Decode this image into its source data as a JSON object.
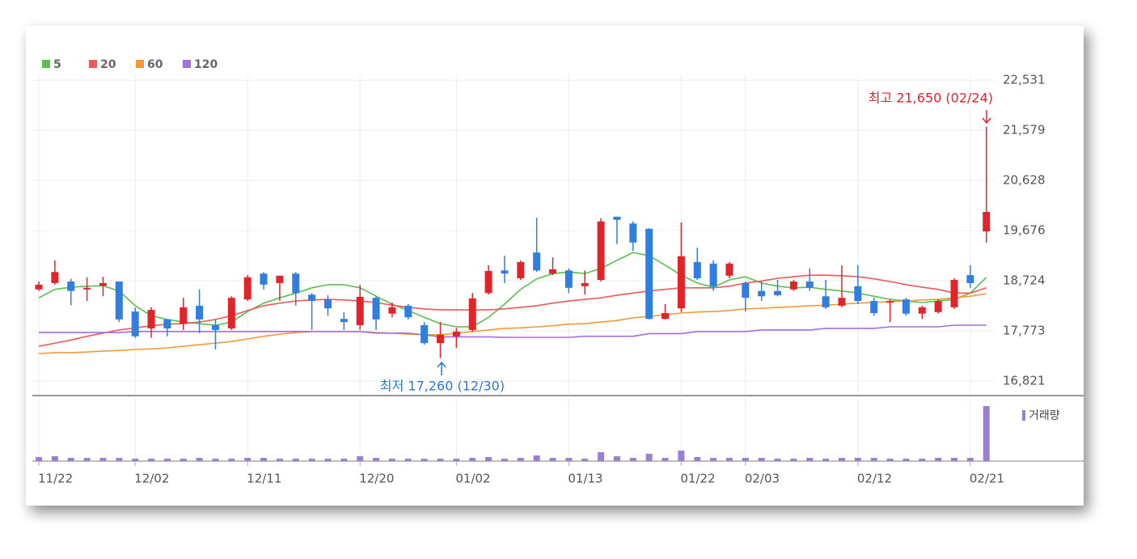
{
  "chart_data": [
    {
      "type": "candlestick",
      "up_color": "#e0252a",
      "down_color": "#2f7ee0",
      "ylim": [
        16560,
        22640
      ],
      "yticks": [
        {
          "value": 22531,
          "label": "22,531"
        },
        {
          "value": 21579,
          "label": "21,579"
        },
        {
          "value": 20628,
          "label": "20,628"
        },
        {
          "value": 19676,
          "label": "19,676"
        },
        {
          "value": 18724,
          "label": "18,724"
        },
        {
          "value": 17773,
          "label": "17,773"
        },
        {
          "value": 16821,
          "label": "16,821"
        }
      ],
      "grid": true,
      "annotations": [
        "최고 21,650 (02/24)",
        "최저 17,260 (12/30)"
      ],
      "open": [
        18560,
        18680,
        18710,
        18560,
        18630,
        18710,
        18140,
        17820,
        17990,
        17910,
        18250,
        17880,
        17820,
        18370,
        18860,
        18680,
        18860,
        18460,
        18370,
        18000,
        17880,
        18400,
        18100,
        18250,
        17880,
        17540,
        17670,
        17790,
        18490,
        18920,
        18770,
        19260,
        18860,
        18920,
        18620,
        18740,
        19940,
        19810,
        19710,
        18000,
        18200,
        19080,
        19050,
        18820,
        18680,
        18530,
        18530,
        18560,
        18710,
        18430,
        18250,
        18620,
        18340,
        18310,
        18370,
        18100,
        18130,
        18220,
        18830,
        19660
      ],
      "high": [
        18710,
        19110,
        18760,
        18790,
        18800,
        18710,
        18220,
        18220,
        17990,
        18400,
        18560,
        17990,
        18430,
        18830,
        18890,
        18820,
        18890,
        18490,
        18450,
        18130,
        18650,
        18430,
        18310,
        18280,
        17940,
        17940,
        17830,
        18490,
        19020,
        19200,
        19110,
        19920,
        19170,
        18960,
        18920,
        19910,
        19940,
        19850,
        19720,
        18280,
        19830,
        19350,
        19110,
        19080,
        18710,
        18710,
        18740,
        18740,
        18960,
        18740,
        19020,
        19020,
        18400,
        18370,
        18400,
        18250,
        18370,
        18770,
        19020,
        21650
      ],
      "low": [
        18530,
        18650,
        18260,
        18340,
        18430,
        17940,
        17640,
        17640,
        17670,
        17790,
        17730,
        17420,
        17790,
        18340,
        18560,
        18340,
        18250,
        17790,
        18060,
        17790,
        17790,
        17790,
        18030,
        17990,
        17510,
        17260,
        17450,
        17760,
        18460,
        18680,
        18740,
        18890,
        18830,
        18490,
        18460,
        18710,
        19420,
        19290,
        17990,
        17990,
        18130,
        18740,
        18530,
        18770,
        18140,
        18340,
        18430,
        18530,
        18530,
        18190,
        18220,
        18280,
        18060,
        17940,
        18060,
        18000,
        18100,
        18190,
        18590,
        19450
      ],
      "close": [
        18650,
        18890,
        18530,
        18590,
        18680,
        17990,
        17670,
        18170,
        17820,
        18220,
        17990,
        17790,
        18400,
        18790,
        18650,
        18820,
        18490,
        18340,
        18200,
        17940,
        18420,
        17990,
        18220,
        18030,
        17540,
        17700,
        17760,
        18390,
        18910,
        18860,
        19080,
        18920,
        18940,
        18590,
        18680,
        19850,
        19880,
        19450,
        18000,
        18110,
        19190,
        18770,
        18620,
        19050,
        18400,
        18430,
        18450,
        18710,
        18590,
        18220,
        18400,
        18340,
        18110,
        18340,
        18100,
        18220,
        18340,
        18740,
        18680,
        20030
      ],
      "series": [
        {
          "name": "5",
          "color": "#5bbf4f",
          "values": [
            18400,
            18560,
            18600,
            18620,
            18630,
            18530,
            18250,
            18060,
            17990,
            17940,
            17910,
            17880,
            17940,
            18140,
            18300,
            18400,
            18490,
            18590,
            18650,
            18650,
            18590,
            18430,
            18280,
            18160,
            18030,
            17910,
            17850,
            17850,
            18030,
            18280,
            18560,
            18760,
            18860,
            18890,
            18860,
            18960,
            19110,
            19260,
            19200,
            19020,
            18830,
            18680,
            18600,
            18740,
            18800,
            18680,
            18620,
            18590,
            18600,
            18560,
            18530,
            18490,
            18430,
            18370,
            18340,
            18310,
            18340,
            18370,
            18490,
            18790
          ]
        },
        {
          "name": "20",
          "color": "#ec5a5a",
          "values": [
            17480,
            17540,
            17600,
            17670,
            17730,
            17790,
            17830,
            17870,
            17900,
            17910,
            17940,
            17990,
            18060,
            18160,
            18250,
            18300,
            18340,
            18360,
            18370,
            18360,
            18340,
            18310,
            18260,
            18220,
            18190,
            18170,
            18170,
            18170,
            18170,
            18190,
            18220,
            18250,
            18300,
            18340,
            18370,
            18400,
            18450,
            18490,
            18530,
            18560,
            18590,
            18590,
            18590,
            18620,
            18680,
            18720,
            18770,
            18800,
            18830,
            18830,
            18820,
            18800,
            18760,
            18710,
            18650,
            18600,
            18560,
            18490,
            18490,
            18590
          ]
        },
        {
          "name": "60",
          "color": "#f39a38",
          "values": [
            17340,
            17360,
            17360,
            17370,
            17390,
            17400,
            17420,
            17430,
            17450,
            17480,
            17510,
            17540,
            17570,
            17620,
            17670,
            17710,
            17740,
            17760,
            17760,
            17760,
            17760,
            17740,
            17730,
            17710,
            17700,
            17700,
            17730,
            17760,
            17790,
            17820,
            17830,
            17850,
            17870,
            17900,
            17910,
            17940,
            17970,
            18020,
            18050,
            18080,
            18110,
            18130,
            18140,
            18160,
            18190,
            18200,
            18220,
            18230,
            18250,
            18260,
            18280,
            18300,
            18310,
            18330,
            18340,
            18360,
            18370,
            18400,
            18430,
            18480
          ]
        },
        {
          "name": "120",
          "color": "#a36fdc",
          "values": [
            17740,
            17740,
            17740,
            17740,
            17740,
            17740,
            17760,
            17760,
            17760,
            17760,
            17760,
            17760,
            17760,
            17760,
            17760,
            17760,
            17760,
            17760,
            17760,
            17760,
            17760,
            17730,
            17730,
            17730,
            17700,
            17660,
            17660,
            17660,
            17660,
            17650,
            17650,
            17650,
            17650,
            17650,
            17670,
            17670,
            17670,
            17670,
            17720,
            17720,
            17720,
            17760,
            17760,
            17760,
            17760,
            17790,
            17790,
            17790,
            17790,
            17820,
            17820,
            17820,
            17820,
            17850,
            17850,
            17850,
            17850,
            17880,
            17880,
            17880
          ]
        }
      ]
    },
    {
      "type": "bar",
      "ylim": [
        0,
        7800000
      ],
      "categories": [
        "11/22",
        null,
        null,
        null,
        null,
        null,
        "12/02",
        null,
        null,
        null,
        null,
        null,
        null,
        "12/11",
        null,
        null,
        null,
        null,
        null,
        null,
        "12/20",
        null,
        null,
        null,
        null,
        null,
        "01/02",
        null,
        null,
        null,
        null,
        null,
        null,
        "01/13",
        null,
        null,
        null,
        null,
        null,
        null,
        "01/22",
        null,
        null,
        null,
        "02/03",
        null,
        null,
        null,
        null,
        null,
        null,
        "02/12",
        null,
        null,
        null,
        null,
        null,
        null,
        "02/21",
        null
      ],
      "series": [
        {
          "name": "거래량",
          "color": "#9a80d4",
          "values": [
            500000,
            600000,
            400000,
            400000,
            400000,
            400000,
            300000,
            300000,
            300000,
            300000,
            400000,
            300000,
            300000,
            400000,
            400000,
            300000,
            300000,
            300000,
            300000,
            300000,
            600000,
            400000,
            300000,
            300000,
            300000,
            300000,
            300000,
            400000,
            500000,
            300000,
            400000,
            700000,
            400000,
            400000,
            300000,
            1100000,
            600000,
            400000,
            900000,
            400000,
            1300000,
            500000,
            400000,
            400000,
            400000,
            400000,
            300000,
            300000,
            400000,
            300000,
            400000,
            400000,
            400000,
            300000,
            300000,
            300000,
            400000,
            400000,
            400000,
            6800000
          ]
        }
      ]
    }
  ]
}
